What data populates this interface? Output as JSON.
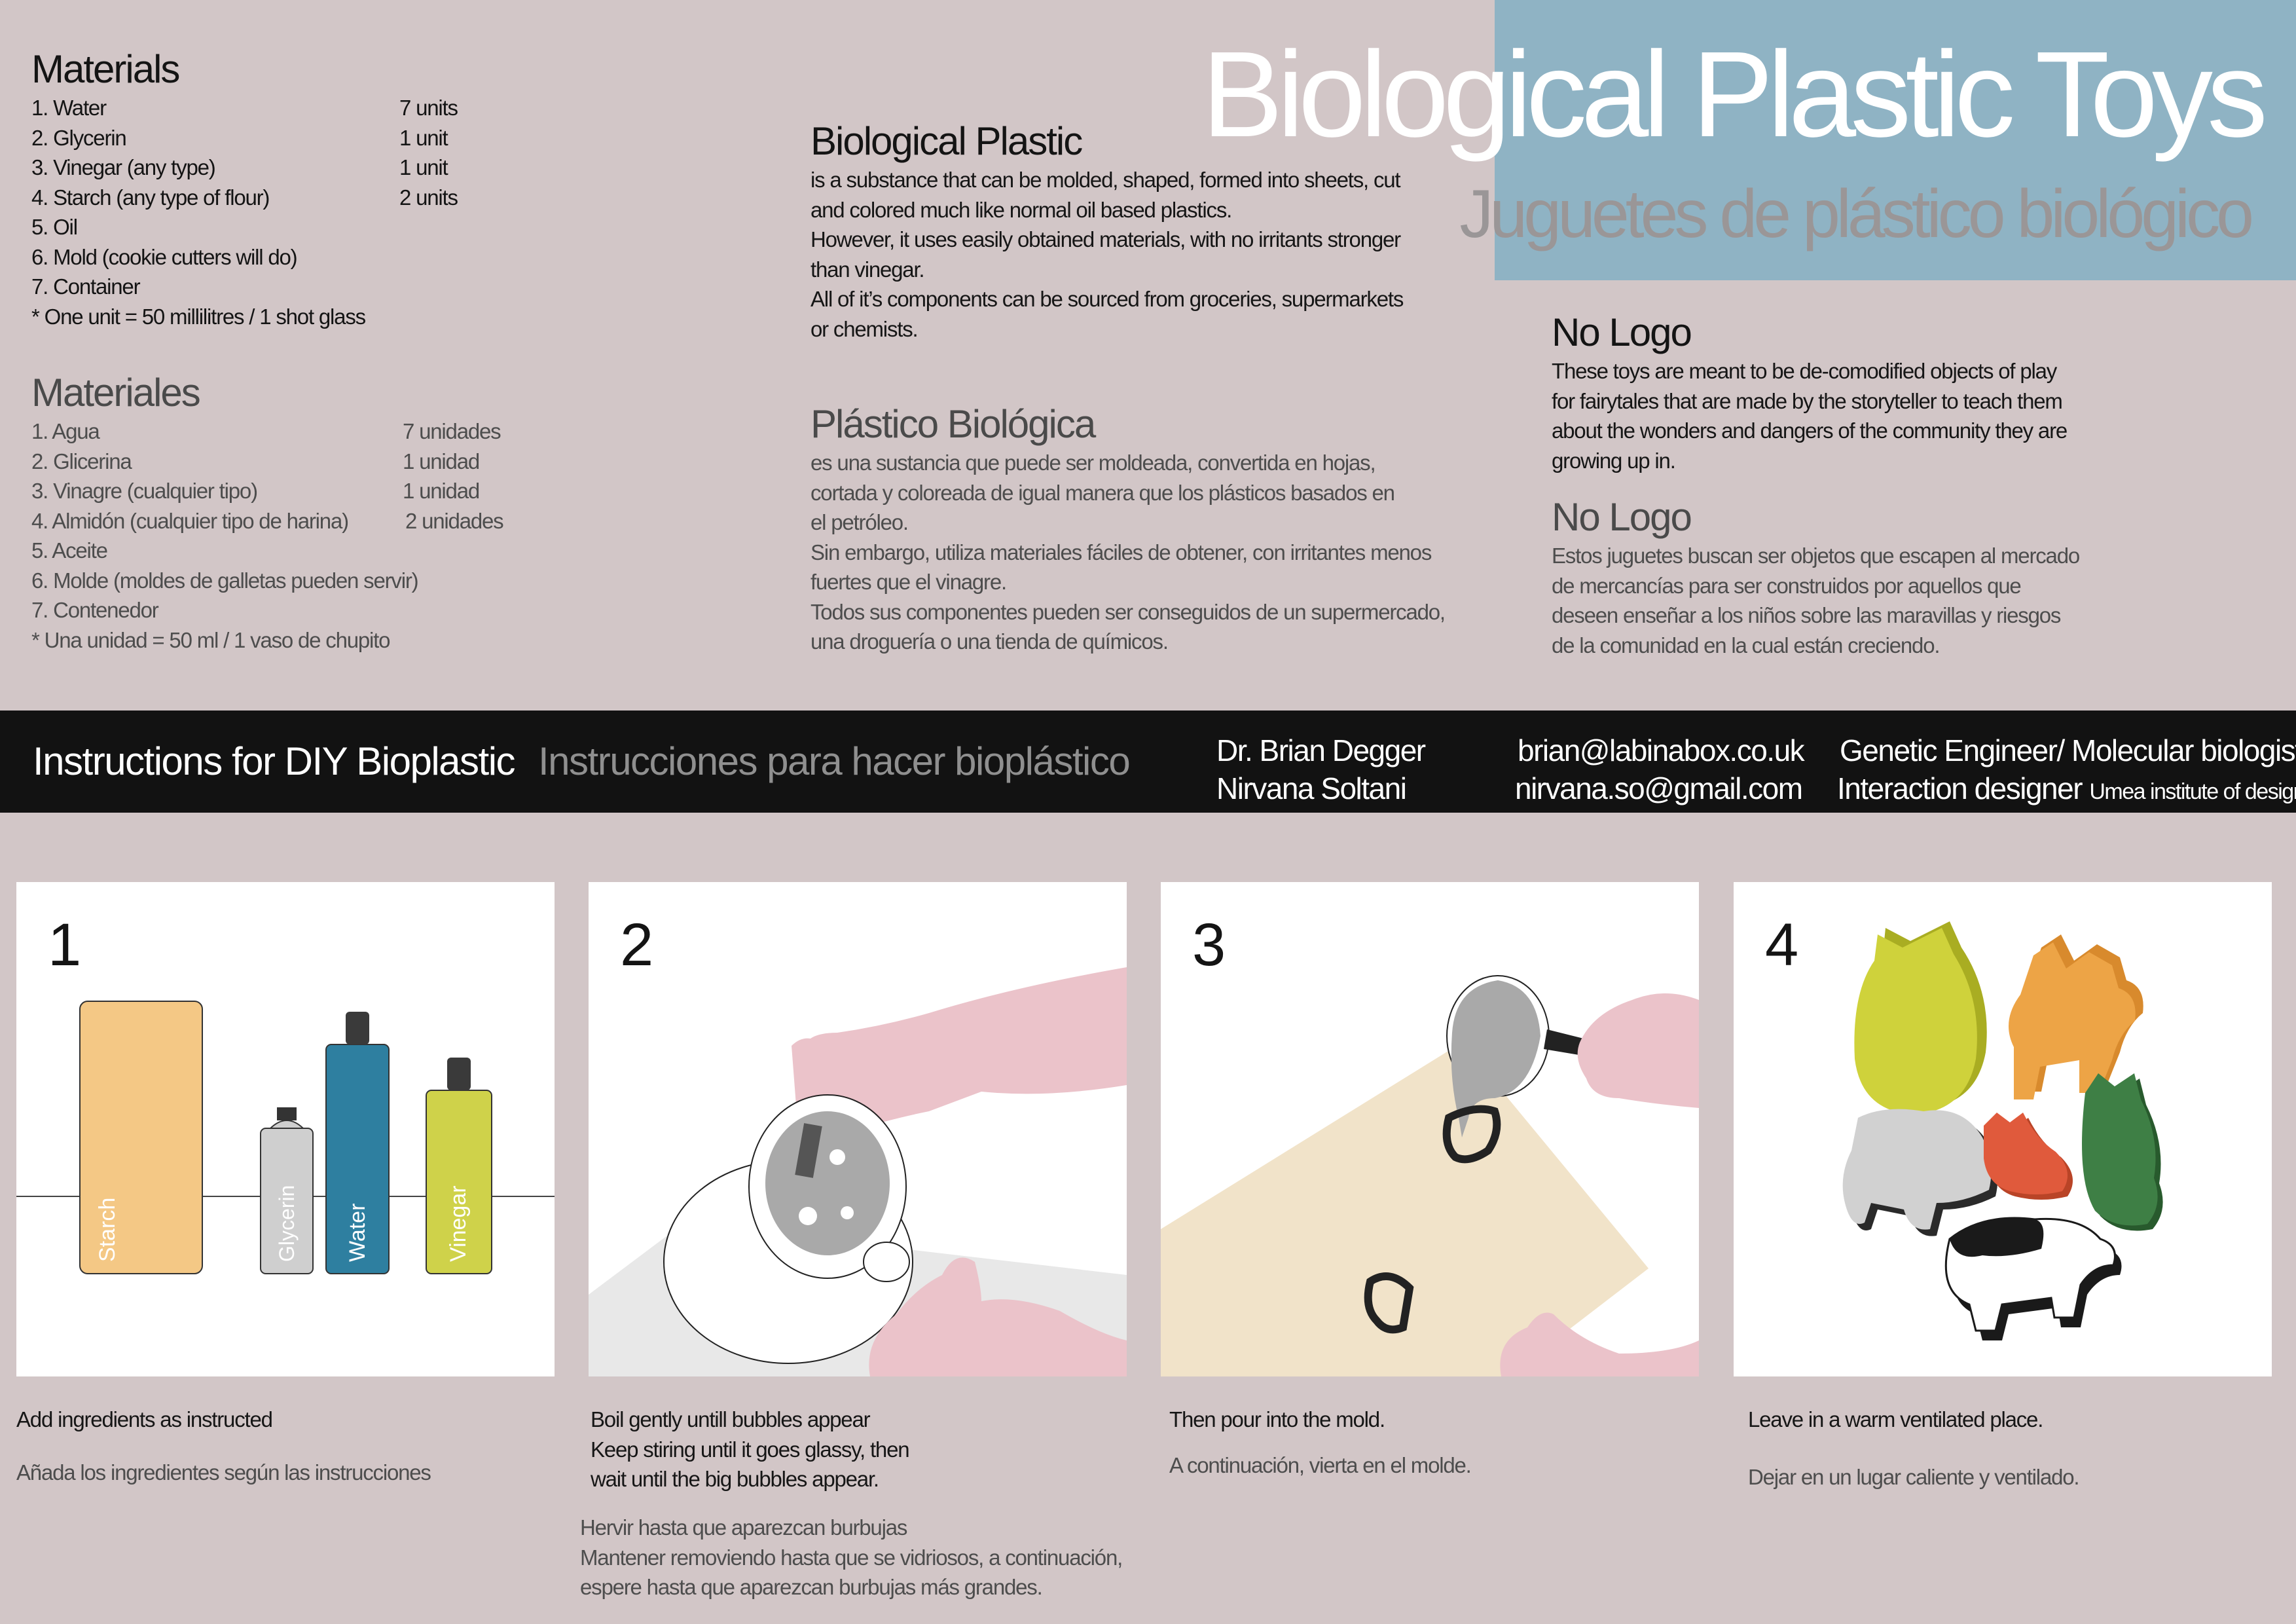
{
  "header": {
    "title": "Biological Plastic Toys",
    "subtitle": "Juguetes de plástico biológico"
  },
  "materials_en": {
    "heading": "Materials",
    "items": [
      {
        "label": "1. Water",
        "qty": "7 units"
      },
      {
        "label": "2. Glycerin",
        "qty": "1 unit"
      },
      {
        "label": "3. Vinegar (any type)",
        "qty": "1 unit"
      },
      {
        "label": "4. Starch (any type of flour)",
        "qty": "2 units"
      },
      {
        "label": "5. Oil",
        "qty": ""
      },
      {
        "label": "6. Mold (cookie cutters will do)",
        "qty": ""
      },
      {
        "label": "7. Container",
        "qty": ""
      },
      {
        "label": "* One unit = 50 millilitres / 1 shot glass",
        "qty": ""
      }
    ]
  },
  "materials_es": {
    "heading": "Materiales",
    "items": [
      {
        "label": "1. Agua",
        "qty": "7 unidades"
      },
      {
        "label": "2. Glicerina",
        "qty": "1 unidad"
      },
      {
        "label": "3. Vinagre (cualquier tipo)",
        "qty": "1 unidad"
      },
      {
        "label": "4. Almidón (cualquier tipo de harina)",
        "qty": "2 unidades"
      },
      {
        "label": "5. Aceite",
        "qty": ""
      },
      {
        "label": "6. Molde (moldes de galletas pueden servir)",
        "qty": ""
      },
      {
        "label": "7. Contenedor",
        "qty": ""
      },
      {
        "label": "* Una unidad = 50 ml / 1 vaso de chupito",
        "qty": ""
      }
    ]
  },
  "bioplastic_en": {
    "heading": "Biological Plastic",
    "lines": [
      "is a substance that can be molded, shaped, formed into sheets, cut",
      "and colored much like normal oil based plastics.",
      "However, it uses easily obtained materials, with no irritants stronger",
      "than vinegar.",
      "All of it’s components can be sourced from groceries, supermarkets",
      "or chemists."
    ]
  },
  "bioplastic_es": {
    "heading": "Plástico Biológica",
    "lines": [
      "es una sustancia que puede ser moldeada, convertida en hojas,",
      "cortada y coloreada de igual manera que los plásticos basados en",
      "el petróleo.",
      "Sin embargo, utiliza materiales fáciles de obtener, con irritantes menos",
      "fuertes que el vinagre.",
      "Todos sus componentes pueden ser conseguidos de un supermercado,",
      "una droguería o una tienda de químicos."
    ]
  },
  "nologo_en": {
    "heading": "No Logo",
    "lines": [
      "These toys are meant to be de-comodified objects of play",
      "for fairytales that are  made by the storyteller to teach them",
      "about the wonders and dangers of the  community they are",
      "growing up in."
    ]
  },
  "nologo_es": {
    "heading": "No Logo",
    "lines": [
      "Estos juguetes buscan ser objetos que escapen al mercado",
      "de mercancías para ser construidos por aquellos que",
      "deseen enseñar a los niños sobre las maravillas y riesgos",
      "de la comunidad en la cual están creciendo."
    ]
  },
  "banner": {
    "title_en": "Instructions for  DIY Bioplastic",
    "title_es": "Instrucciones para hacer bioplástico",
    "name1": "Dr. Brian Degger",
    "name2": "Nirvana Soltani",
    "email1": "brian@labinabox.co.uk",
    "email2": "nirvana.so@gmail.com",
    "role1": "Genetic Engineer/ Molecular biologist",
    "role2": "Interaction designer",
    "institute": "Umea institute of design"
  },
  "steps": [
    {
      "number": "1",
      "caption_en": [
        "Add ingredients as instructed"
      ],
      "caption_es": [
        "Añada los ingredientes según las instrucciones"
      ]
    },
    {
      "number": "2",
      "caption_en": [
        "Boil gently untill bubbles appear",
        "Keep stiring until it goes glassy, then",
        "wait until the big bubbles appear."
      ],
      "caption_es": [
        "Hervir hasta que aparezcan burbujas",
        "Mantener removiendo hasta que se vidriosos, a continuación,",
        "espere hasta que aparezcan burbujas más grandes."
      ]
    },
    {
      "number": "3",
      "caption_en": [
        "Then pour into the mold."
      ],
      "caption_es": [
        "A continuación, vierta en el molde."
      ]
    },
    {
      "number": "4",
      "caption_en": [
        "Leave in a warm ventilated place."
      ],
      "caption_es": [
        "Dejar en un lugar caliente y ventilado."
      ]
    }
  ],
  "bottles": [
    {
      "label": "Starch",
      "color": "#f4c885"
    },
    {
      "label": "Glycerin",
      "color": "#cfcfcf"
    },
    {
      "label": "Water",
      "color": "#2e7fa0"
    },
    {
      "label": "Vinegar",
      "color": "#cfd24a"
    }
  ],
  "toy_colors": [
    "#cfd23b",
    "#eda446",
    "#d1d1d1",
    "#e05a3c",
    "#3e7f45",
    "#ffffff"
  ]
}
